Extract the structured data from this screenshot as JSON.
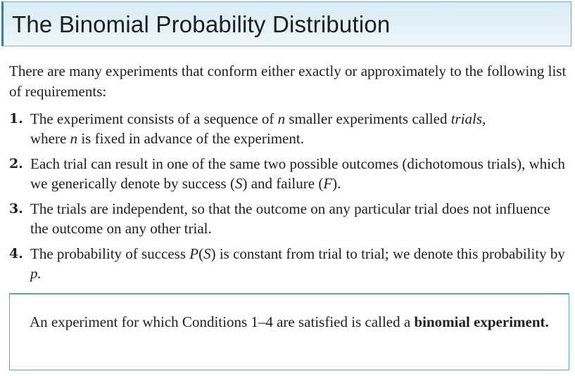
{
  "title": "The Binomial Probability Distribution",
  "intro": "There are many experiments that conform either exactly or approximately to the following list of requirements:",
  "requirements": [
    {
      "number": "1.",
      "parts": [
        "The experiment consists of a sequence of ",
        "n",
        " smaller experiments called ",
        "trials,",
        " where ",
        "n",
        " is fixed in advance of the experiment."
      ]
    },
    {
      "number": "2.",
      "parts": [
        "Each trial can result in one of the same two possible outcomes (dichotomous trials), which we generically denote by success (",
        "S",
        ") and failure (",
        "F",
        ")."
      ]
    },
    {
      "number": "3.",
      "parts": [
        "The trials are independent, so that the outcome on any particular trial does not influence the outcome on any other trial."
      ]
    },
    {
      "number": "4.",
      "parts": [
        "The probability of success ",
        "P",
        "(",
        "S",
        ") is constant from trial to trial; we denote this probability by ",
        "p."
      ]
    }
  ],
  "definition": {
    "prefix": "An experiment for which Conditions 1–4 are satisfied is called a ",
    "term": "binomial experiment."
  }
}
